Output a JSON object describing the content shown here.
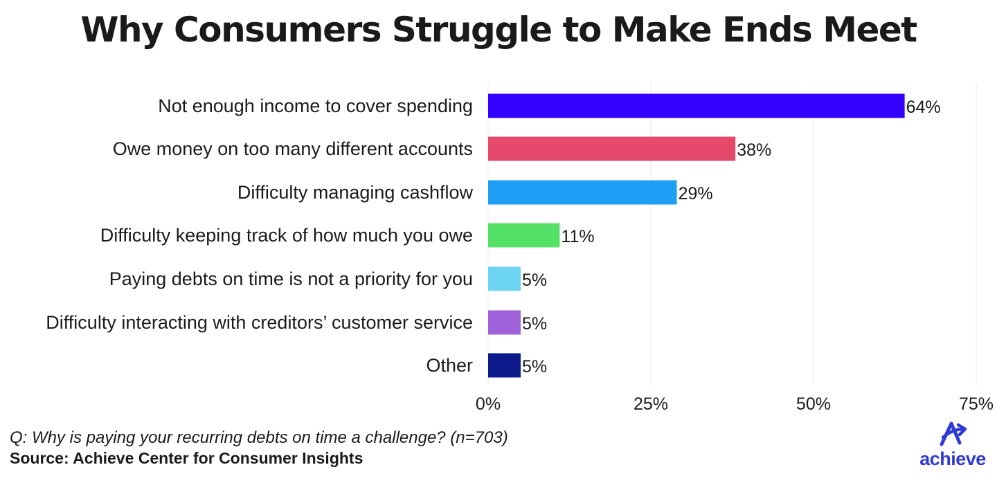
{
  "title": "Why Consumers Struggle to Make Ends Meet",
  "question": "Q: Why is paying your recurring debts on time a challenge? (n=703)",
  "source": "Source: Achieve Center for Consumer Insights",
  "logo": {
    "text": "achieve",
    "icon": "achieve-a-arrow-icon",
    "color": "#2f3bd6"
  },
  "chart_data": {
    "type": "bar",
    "orientation": "horizontal",
    "title": "Why Consumers Struggle to Make Ends Meet",
    "categories": [
      "Not enough income to cover spending",
      "Owe money on too many different accounts",
      "Difficulty managing cashflow",
      "Difficulty keeping track of how much you owe",
      "Paying debts on time is not a priority for you",
      "Difficulty interacting with creditors’ customer service",
      "Other"
    ],
    "values": [
      64,
      38,
      29,
      11,
      5,
      5,
      5
    ],
    "value_labels": [
      "64%",
      "38%",
      "29%",
      "11%",
      "5%",
      "5%",
      "5%"
    ],
    "colors": [
      "#3300ff",
      "#e54a6c",
      "#1e9ff5",
      "#55e068",
      "#6dd4f2",
      "#a062d9",
      "#0d1a8c"
    ],
    "xlim": [
      0,
      75
    ],
    "x_ticks": [
      0,
      25,
      50,
      75
    ],
    "x_tick_labels": [
      "0%",
      "25%",
      "50%",
      "75%"
    ],
    "grid": "vertical",
    "legend": "none"
  }
}
